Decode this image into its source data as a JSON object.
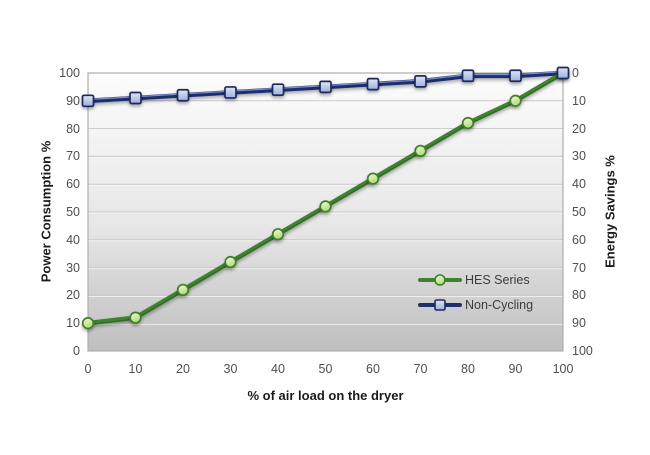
{
  "chart_data": {
    "type": "line",
    "title": "",
    "x": [
      0,
      10,
      20,
      30,
      40,
      50,
      60,
      70,
      80,
      90,
      100
    ],
    "series": [
      {
        "name": "HES Series",
        "values": [
          10,
          12,
          22,
          32,
          42,
          52,
          62,
          72,
          82,
          90,
          100
        ],
        "line_color": "#3f8130",
        "line_edge_color": "#27591b",
        "marker": "circle",
        "marker_fill": "#cdeb9d",
        "marker_border": "#417f27"
      },
      {
        "name": "Non-Cycling",
        "values": [
          90,
          91,
          92,
          93,
          94,
          95,
          96,
          97,
          99,
          99,
          100
        ],
        "line_color": "#1e2f6d",
        "line_edge_color": "#8ea3d8",
        "marker": "square",
        "marker_fill": "#b9c4e6",
        "marker_border": "#1b2a5e"
      }
    ],
    "xlabel": "% of air load on the dryer",
    "ylabel_left": "Power Consumption %",
    "ylabel_right": "Energy Savings %",
    "x_ticks": [
      0,
      10,
      20,
      30,
      40,
      50,
      60,
      70,
      80,
      90,
      100
    ],
    "y_ticks_left": [
      100,
      90,
      80,
      70,
      60,
      50,
      40,
      30,
      20,
      10,
      0
    ],
    "y_ticks_right": [
      0,
      10,
      20,
      30,
      40,
      50,
      60,
      70,
      80,
      90,
      100
    ],
    "ylim_left": [
      0,
      100
    ],
    "right_axis_relation": "energy_savings = 100 - power_consumption",
    "grid": "horizontal",
    "legend_position": "inside-right-lower",
    "plot_bg_top": "#fcfcfc",
    "plot_bg_bottom": "#bfbfbf",
    "grid_color": "#c7c7c7",
    "border_color": "#aeaeae",
    "tick_color": "#4f4f4f"
  }
}
